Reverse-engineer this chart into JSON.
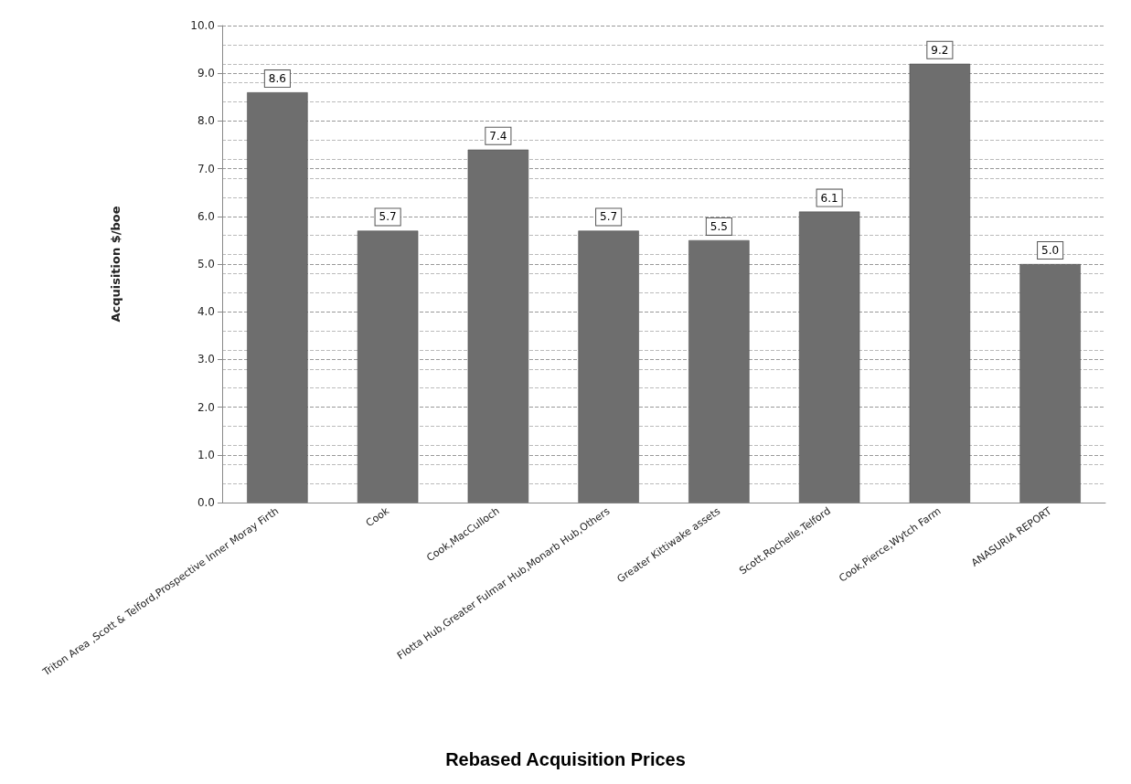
{
  "chart_data": {
    "type": "bar",
    "title": "Rebased Acquisition Prices",
    "ylabel": "Acquisition $/boe",
    "categories": [
      "Triton Area ,Scott & Telford,Prospective Inner Moray Firth",
      "Cook",
      "Cook,MacCulloch",
      "Flotta Hub,Greater Fulmar Hub,Monarb Hub,Others",
      "Greater Kittiwake assets",
      "Scott,Rochelle,Telford",
      "Cook,Pierce,Wytch Farm",
      "ANASURIA REPORT"
    ],
    "values": [
      8.6,
      5.7,
      7.4,
      5.7,
      5.5,
      6.1,
      9.2,
      5.0
    ],
    "value_labels": [
      "8.6",
      "5.7",
      "7.4",
      "5.7",
      "5.5",
      "6.1",
      "9.2",
      "5.0"
    ],
    "color": "#6e6e6e",
    "ylim": [
      0,
      10
    ],
    "yticks": [
      {
        "value": 0,
        "label": "0.0"
      },
      {
        "value": 1,
        "label": "1.0"
      },
      {
        "value": 2,
        "label": "2.0"
      },
      {
        "value": 3,
        "label": "3.0"
      },
      {
        "value": 4,
        "label": "4.0"
      },
      {
        "value": 5,
        "label": "5.0"
      },
      {
        "value": 6,
        "label": "6.0"
      },
      {
        "value": 7,
        "label": "7.0"
      },
      {
        "value": 8,
        "label": "8.0"
      },
      {
        "value": 9,
        "label": "9.0"
      },
      {
        "value": 10,
        "label": "10.0"
      }
    ],
    "grid": "y"
  }
}
